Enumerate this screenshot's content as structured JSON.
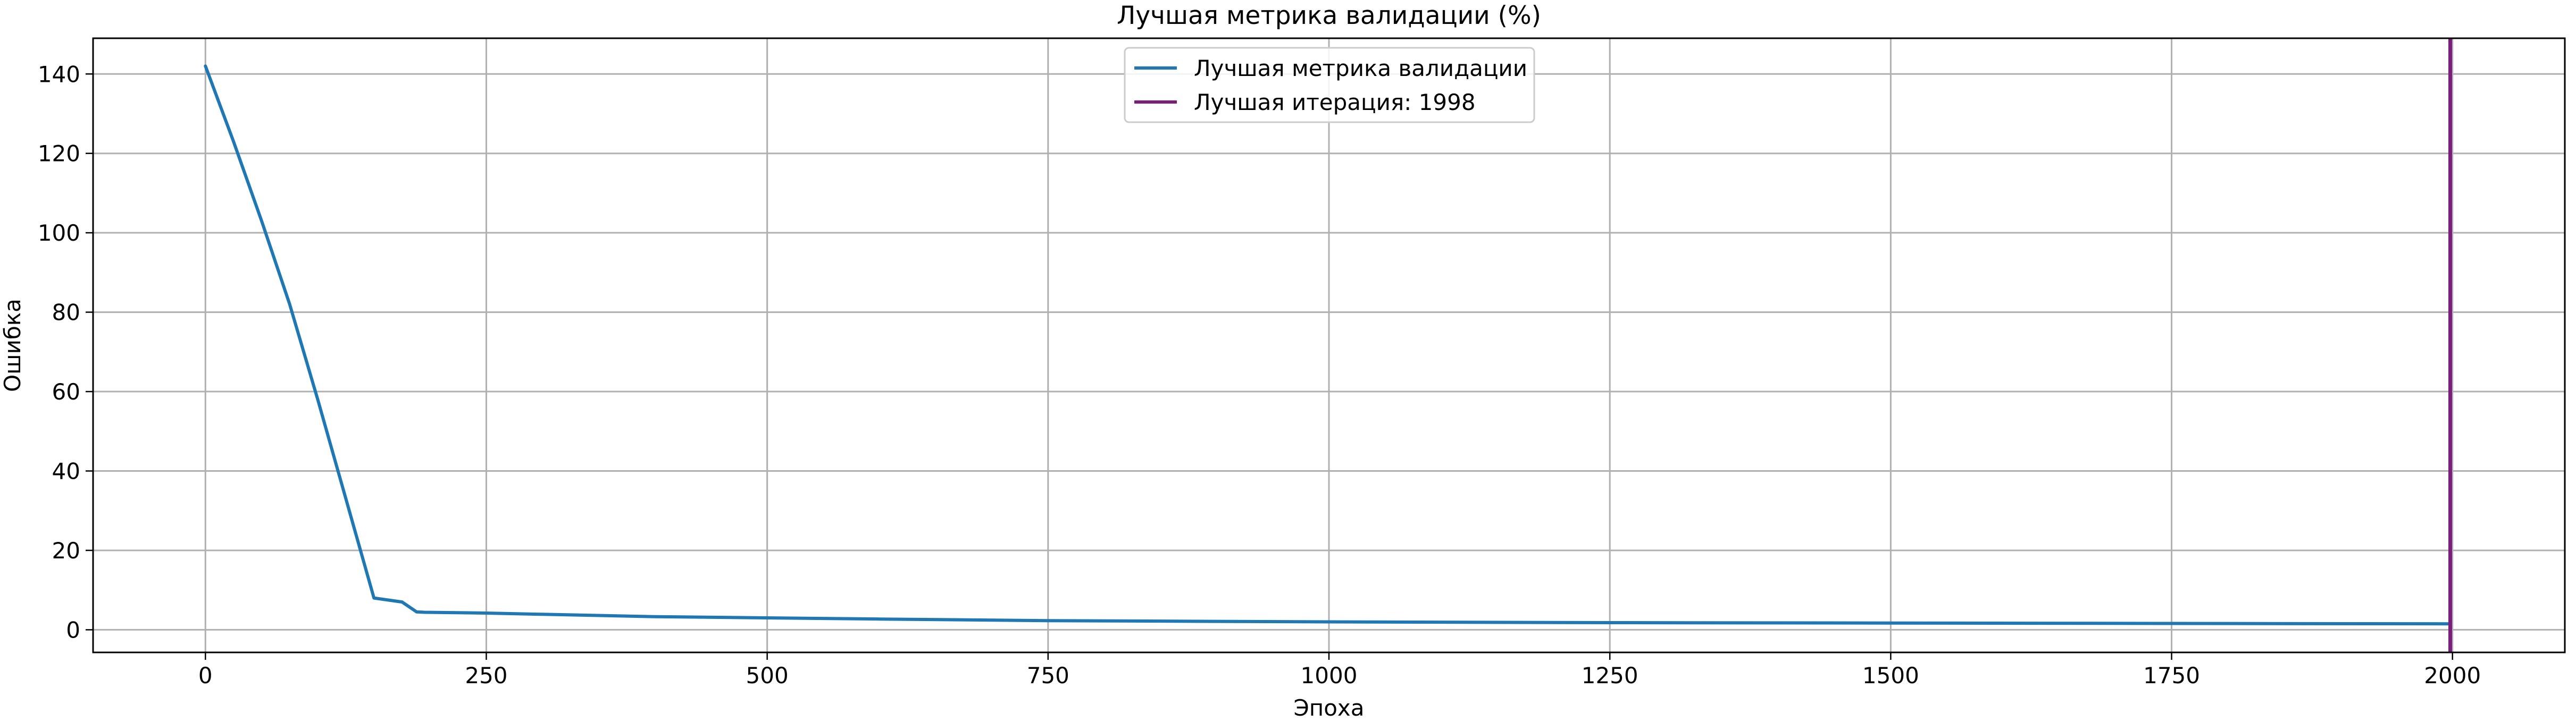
{
  "chart_data": {
    "type": "line",
    "title": "Лучшая метрика валидации (%)",
    "xlabel": "Эпоха",
    "ylabel": "Ошибка",
    "xlim": [
      -100,
      2100
    ],
    "ylim": [
      -5.7,
      149
    ],
    "x_ticks": [
      0,
      250,
      500,
      750,
      1000,
      1250,
      1500,
      1750,
      2000
    ],
    "y_ticks": [
      0,
      20,
      40,
      60,
      80,
      100,
      120,
      140
    ],
    "grid": true,
    "legend_position": "top-center",
    "series": [
      {
        "name": "Лучшая метрика валидации",
        "color": "#1f77b4",
        "x": [
          0,
          25,
          50,
          75,
          100,
          125,
          150,
          175,
          188,
          195,
          250,
          300,
          400,
          500,
          600,
          750,
          1000,
          1250,
          1500,
          1750,
          1998
        ],
        "y": [
          142,
          123,
          103,
          82,
          58,
          33,
          8,
          7,
          4.5,
          4.4,
          4.2,
          3.9,
          3.3,
          3.0,
          2.7,
          2.3,
          2.0,
          1.8,
          1.7,
          1.6,
          1.5
        ]
      }
    ],
    "vlines": [
      {
        "name": "Лучшая итерация: 1998",
        "x": 1998,
        "color": "#7b1c7f"
      }
    ]
  }
}
